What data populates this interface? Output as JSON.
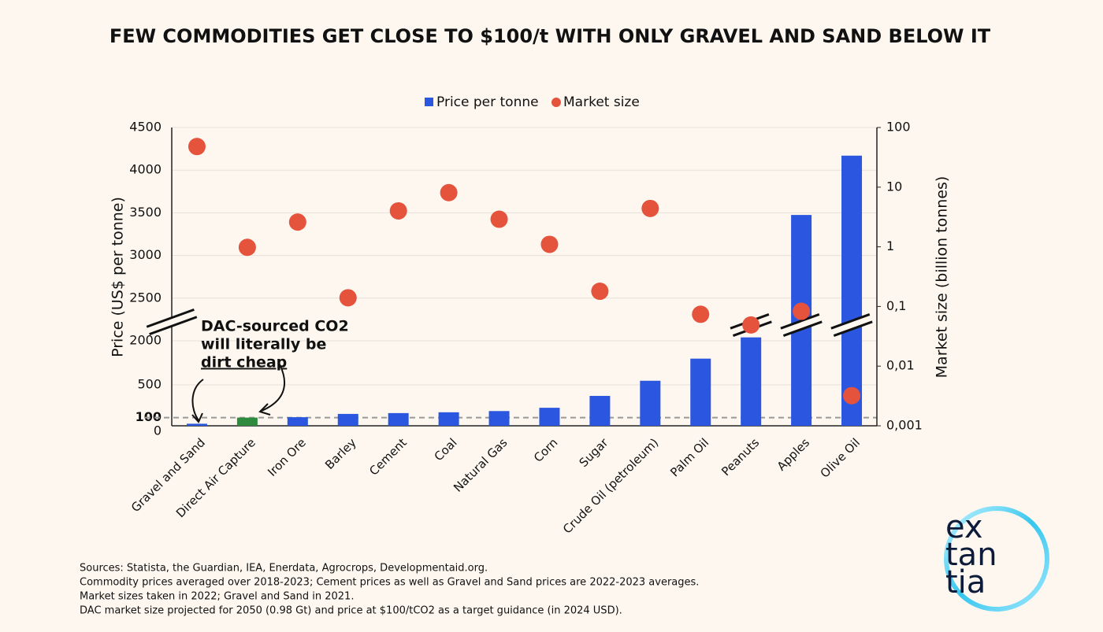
{
  "chart_data": {
    "type": "bar_dot",
    "title": "FEW COMMODITIES GET CLOSE TO $100/t WITH ONLY GRAVEL AND SAND BELOW IT",
    "ylabel": "Price (US$ per tonne)",
    "y2label": "Market size (billion tonnes)",
    "categories": [
      "Gravel and Sand",
      "Direct Air Capture",
      "Iron Ore",
      "Barley",
      "Cement",
      "Coal",
      "Natural Gas",
      "Corn",
      "Sugar",
      "Crude Oil (petroleum)",
      "Palm Oil",
      "Peanuts",
      "Apples",
      "Olive Oil"
    ],
    "series": [
      {
        "name": "Price per tonne",
        "color": "#2b57e0",
        "colors": [
          "#2b57e0",
          "#2e8b3e",
          "#2b57e0",
          "#2b57e0",
          "#2b57e0",
          "#2b57e0",
          "#2b57e0",
          "#2b57e0",
          "#2b57e0",
          "#2b57e0",
          "#2b57e0",
          "#2b57e0",
          "#2b57e0",
          "#2b57e0"
        ],
        "values": [
          25,
          100,
          105,
          145,
          155,
          165,
          180,
          220,
          365,
          550,
          820,
          2040,
          3475,
          4170
        ]
      },
      {
        "name": "Market size",
        "color": "#e5533d",
        "axis": "y2",
        "values": [
          48,
          0.98,
          2.6,
          0.14,
          4.0,
          8.1,
          2.9,
          1.1,
          0.18,
          4.4,
          0.074,
          0.049,
          0.083,
          0.0032
        ]
      }
    ],
    "ylim": [
      0,
      4500
    ],
    "yticks": [
      0,
      100,
      500,
      2000,
      2500,
      3000,
      3500,
      4000,
      4500
    ],
    "y_axis_break": true,
    "y2scale": "log",
    "y2lim": [
      0.001,
      100
    ],
    "y2ticks": [
      100,
      10,
      1,
      {
        "value": 0.1,
        "label": "0,1"
      },
      {
        "value": 0.01,
        "label": "0,01"
      },
      {
        "value": 0.001,
        "label": "0,001"
      }
    ],
    "grid": true,
    "legend": "top",
    "annotation": [
      "DAC-sourced CO2",
      "will literally be",
      "dirt cheap"
    ],
    "sources": [
      "Sources: Statista, the Guardian, IEA, Enerdata, Agrocrops, Developmentaid.org.",
      "Commodity prices averaged over 2018-2023; Cement prices as well as Gravel and Sand prices are 2022-2023 averages.",
      "Market sizes taken in 2022; Gravel and Sand in 2021.",
      "DAC market size projected for 2050 (0.98 Gt) and price at $100/tCO2 as a target guidance (in 2024 USD)."
    ],
    "logo": [
      "ex",
      "tan",
      "tia"
    ]
  }
}
